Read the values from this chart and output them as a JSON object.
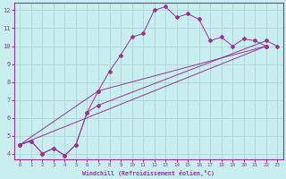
{
  "xlabel": "Windchill (Refroidissement éolien,°C)",
  "xlim": [
    -0.5,
    23.5
  ],
  "ylim": [
    3.7,
    12.4
  ],
  "xticks": [
    0,
    1,
    2,
    3,
    4,
    5,
    6,
    7,
    8,
    9,
    10,
    11,
    12,
    13,
    14,
    15,
    16,
    17,
    18,
    19,
    20,
    21,
    22,
    23
  ],
  "yticks": [
    4,
    5,
    6,
    7,
    8,
    9,
    10,
    11,
    12
  ],
  "bg_color": "#c8eef0",
  "line_color": "#993399",
  "grid_color": "#aacccc",
  "line1_x": [
    0,
    1,
    2,
    3,
    4,
    5,
    6,
    7,
    8,
    9,
    10,
    11,
    12,
    13,
    14,
    15,
    16,
    17,
    18,
    19,
    20,
    21,
    22
  ],
  "line1_y": [
    4.5,
    4.7,
    4.0,
    4.3,
    3.9,
    4.5,
    6.3,
    7.5,
    8.6,
    9.5,
    10.5,
    10.7,
    12.0,
    12.2,
    11.6,
    11.8,
    11.5,
    10.3,
    10.5,
    10.0,
    10.4,
    10.3,
    10.0
  ],
  "line2_x": [
    0,
    1,
    2,
    3,
    4,
    5,
    6,
    7,
    22,
    23
  ],
  "line2_y": [
    4.5,
    4.7,
    4.0,
    4.3,
    3.9,
    4.5,
    6.3,
    6.7,
    10.3,
    10.0
  ],
  "line3_x": [
    0,
    22
  ],
  "line3_y": [
    4.5,
    10.0
  ],
  "line4_x": [
    0,
    7,
    22
  ],
  "line4_y": [
    4.5,
    7.5,
    10.0
  ]
}
